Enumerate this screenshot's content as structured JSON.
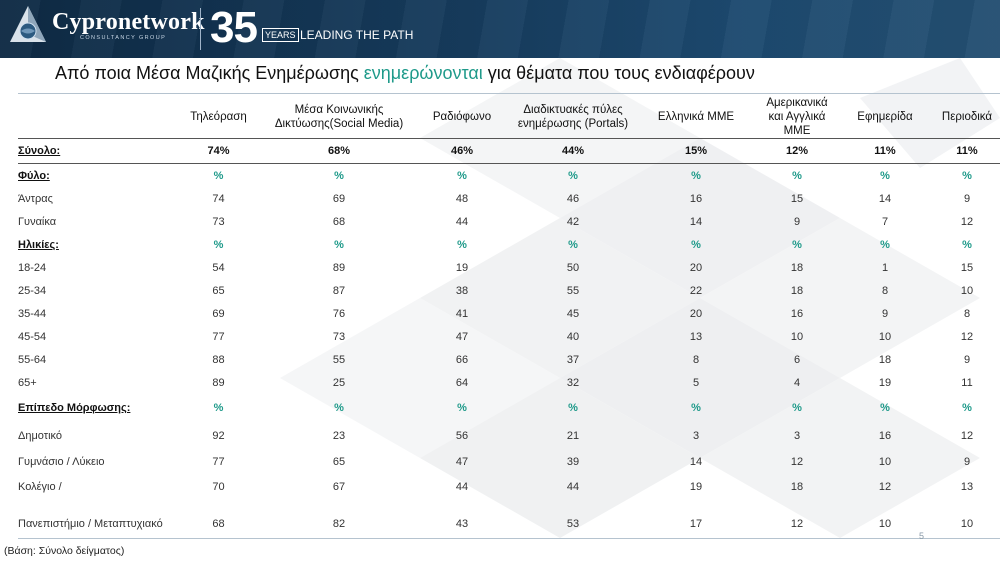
{
  "header": {
    "logo_text": "Cypronetwork",
    "logo_sub": "CONSULTANCY GROUP",
    "anniversary_number": "35",
    "anniversary_years": "YEARS",
    "tagline": "LEADING THE PATH"
  },
  "title": {
    "before": "Από ποια Μέσα Μαζικής Ενημέρωσης ",
    "accent": "ενημερώνονται",
    "after": " για θέματα που τους ενδιαφέρουν"
  },
  "colors": {
    "accent": "#1f9a8a",
    "header_bg": "#163b5c"
  },
  "columns": [
    "Τηλεόραση",
    "Μέσα Κοινωνικής Δικτύωσης(Social Media)",
    "Ραδιόφωνο",
    "Διαδικτυακές πύλες ενημέρωσης (Portals)",
    "Ελληνικά ΜΜΕ",
    "Αμερικανικά και Αγγλικά ΜΜΕ",
    "Εφημερίδα",
    "Περιοδικά"
  ],
  "rows": [
    {
      "type": "total",
      "label": "Σύνολο:",
      "values": [
        "74%",
        "68%",
        "46%",
        "44%",
        "15%",
        "12%",
        "11%",
        "11%"
      ]
    },
    {
      "type": "section",
      "label": "Φύλο:",
      "values": [
        "%",
        "%",
        "%",
        "%",
        "%",
        "%",
        "%",
        "%"
      ]
    },
    {
      "type": "data",
      "label": "Άντρας",
      "values": [
        "74",
        "69",
        "48",
        "46",
        "16",
        "15",
        "14",
        "9"
      ]
    },
    {
      "type": "data",
      "label": "Γυναίκα",
      "values": [
        "73",
        "68",
        "44",
        "42",
        "14",
        "9",
        "7",
        "12"
      ]
    },
    {
      "type": "section",
      "label": "Ηλικίες:",
      "values": [
        "%",
        "%",
        "%",
        "%",
        "%",
        "%",
        "%",
        "%"
      ]
    },
    {
      "type": "data",
      "label": "18-24",
      "values": [
        "54",
        "89",
        "19",
        "50",
        "20",
        "18",
        "1",
        "15"
      ]
    },
    {
      "type": "data",
      "label": "25-34",
      "values": [
        "65",
        "87",
        "38",
        "55",
        "22",
        "18",
        "8",
        "10"
      ]
    },
    {
      "type": "data",
      "label": "35-44",
      "values": [
        "69",
        "76",
        "41",
        "45",
        "20",
        "16",
        "9",
        "8"
      ]
    },
    {
      "type": "data",
      "label": "45-54",
      "values": [
        "77",
        "73",
        "47",
        "40",
        "13",
        "10",
        "10",
        "12"
      ]
    },
    {
      "type": "data",
      "label": "55-64",
      "values": [
        "88",
        "55",
        "66",
        "37",
        "8",
        "6",
        "18",
        "9"
      ]
    },
    {
      "type": "data",
      "label": "65+",
      "values": [
        "89",
        "25",
        "64",
        "32",
        "5",
        "4",
        "19",
        "11"
      ]
    },
    {
      "type": "section tall",
      "label": "Επίπεδο Μόρφωσης:",
      "values": [
        "%",
        "%",
        "%",
        "%",
        "%",
        "%",
        "%",
        "%"
      ]
    },
    {
      "type": "data tall",
      "label": "Δημοτικό",
      "values": [
        "92",
        "23",
        "56",
        "21",
        "3",
        "3",
        "16",
        "12"
      ]
    },
    {
      "type": "data",
      "label": "Γυμνάσιο / Λύκειο",
      "values": [
        "77",
        "65",
        "47",
        "39",
        "14",
        "12",
        "10",
        "9"
      ]
    },
    {
      "type": "data tall",
      "label": "Κολέγιο /",
      "values": [
        "70",
        "67",
        "44",
        "44",
        "19",
        "18",
        "12",
        "13"
      ]
    },
    {
      "type": "data tall2",
      "label": "Πανεπιστήμιο / Μεταπτυχιακό",
      "values": [
        "68",
        "82",
        "43",
        "53",
        "17",
        "12",
        "10",
        "10"
      ]
    }
  ],
  "page_number": "5",
  "footer_base": "(Βάση: Σύνολο δείγματος)"
}
